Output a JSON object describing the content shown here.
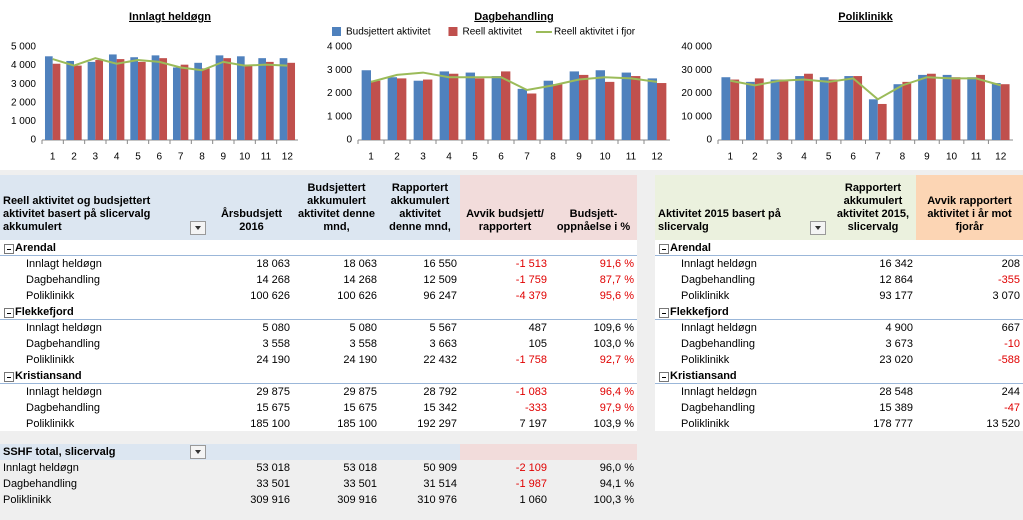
{
  "chart_data": [
    {
      "type": "bar",
      "title": "Innlagt heldøgn",
      "categories": [
        "1",
        "2",
        "3",
        "4",
        "5",
        "6",
        "7",
        "8",
        "9",
        "10",
        "11",
        "12"
      ],
      "ylim": [
        0,
        5000
      ],
      "yticks": [
        0,
        {
          "value": 1000,
          "label": "1 000"
        },
        {
          "value": 2000,
          "label": "2 000"
        },
        {
          "value": 3000,
          "label": "3 000"
        },
        {
          "value": 4000,
          "label": "4 000"
        },
        {
          "value": 5000,
          "label": "5 000"
        }
      ],
      "grid": false,
      "series": [
        {
          "type": "bar",
          "color": "#4f81bd",
          "values": [
            4500,
            4250,
            4200,
            4600,
            4450,
            4550,
            3900,
            4150,
            4550,
            4500,
            4400,
            4400
          ]
        },
        {
          "type": "bar",
          "color": "#c0504d",
          "values": [
            4100,
            4000,
            4300,
            4350,
            4200,
            4400,
            4050,
            3850,
            4400,
            4050,
            4200,
            4150
          ]
        },
        {
          "type": "line",
          "color": "#9bbb59",
          "values": [
            4350,
            4000,
            4400,
            4100,
            4300,
            4200,
            3900,
            3750,
            4200,
            4000,
            4050,
            4000
          ]
        }
      ]
    },
    {
      "type": "bar",
      "title": "Dagbehandling",
      "categories": [
        "1",
        "2",
        "3",
        "4",
        "5",
        "6",
        "7",
        "8",
        "9",
        "10",
        "11",
        "12"
      ],
      "ylim": [
        0,
        4000
      ],
      "yticks": [
        0,
        {
          "value": 1000,
          "label": "1 000"
        },
        {
          "value": 2000,
          "label": "2 000"
        },
        {
          "value": 3000,
          "label": "3 000"
        },
        {
          "value": 4000,
          "label": "4 000"
        }
      ],
      "grid": false,
      "legend": "top",
      "series": [
        {
          "name": "Budsjettert aktivitet",
          "type": "bar",
          "color": "#4f81bd",
          "values": [
            3000,
            2700,
            2550,
            2950,
            2900,
            2750,
            2200,
            2550,
            2950,
            3000,
            2900,
            2650
          ]
        },
        {
          "name": "Reell aktivitet",
          "type": "bar",
          "color": "#c0504d",
          "values": [
            2550,
            2650,
            2600,
            2850,
            2650,
            2950,
            2000,
            2400,
            2800,
            2500,
            2750,
            2450
          ]
        },
        {
          "name": "Reell aktivitet i fjor",
          "type": "line",
          "color": "#9bbb59",
          "values": [
            2500,
            2800,
            2900,
            2700,
            2700,
            2700,
            2150,
            2350,
            2600,
            2700,
            2650,
            2500
          ]
        }
      ]
    },
    {
      "type": "bar",
      "title": "Poliklinikk",
      "categories": [
        "1",
        "2",
        "3",
        "4",
        "5",
        "6",
        "7",
        "8",
        "9",
        "10",
        "11",
        "12"
      ],
      "ylim": [
        0,
        40000
      ],
      "yticks": [
        0,
        {
          "value": 10000,
          "label": "10 000"
        },
        {
          "value": 20000,
          "label": "20 000"
        },
        {
          "value": 30000,
          "label": "30 000"
        },
        {
          "value": 40000,
          "label": "40 000"
        }
      ],
      "grid": false,
      "series": [
        {
          "type": "bar",
          "color": "#4f81bd",
          "values": [
            27000,
            25000,
            26000,
            27500,
            27000,
            27500,
            17500,
            24000,
            28000,
            28000,
            27000,
            24500
          ]
        },
        {
          "type": "bar",
          "color": "#c0504d",
          "values": [
            26000,
            26500,
            26000,
            28500,
            26000,
            27500,
            15500,
            25000,
            28500,
            27000,
            28000,
            24000
          ]
        },
        {
          "type": "line",
          "color": "#9bbb59",
          "values": [
            25500,
            23500,
            25500,
            26000,
            25000,
            26500,
            17500,
            23500,
            27000,
            26500,
            26500,
            23500
          ]
        }
      ]
    }
  ],
  "left_table": {
    "title": "Reell aktivitet og budsjettert aktivitet basert på slicervalg akkumulert",
    "columns": [
      "Årsbudsjett 2016",
      "Budsjettert akkumulert aktivitet denne mnd,",
      "Rapportert akkumulert aktivitet denne mnd,",
      "Avvik budsjett/ rapportert",
      "Budsjett-oppnåelse i %"
    ],
    "groups": [
      {
        "name": "Arendal",
        "rows": [
          [
            "Innlagt heldøgn",
            "18 063",
            "18 063",
            "16 550",
            "-1 513",
            "91,6 %"
          ],
          [
            "Dagbehandling",
            "14 268",
            "14 268",
            "12 509",
            "-1 759",
            "87,7 %"
          ],
          [
            "Poliklinikk",
            "100 626",
            "100 626",
            "96 247",
            "-4 379",
            "95,6 %"
          ]
        ]
      },
      {
        "name": "Flekkefjord",
        "rows": [
          [
            "Innlagt heldøgn",
            "5 080",
            "5 080",
            "5 567",
            "487",
            "109,6 %"
          ],
          [
            "Dagbehandling",
            "3 558",
            "3 558",
            "3 663",
            "105",
            "103,0 %"
          ],
          [
            "Poliklinikk",
            "24 190",
            "24 190",
            "22 432",
            "-1 758",
            "92,7 %"
          ]
        ]
      },
      {
        "name": "Kristiansand",
        "rows": [
          [
            "Innlagt heldøgn",
            "29 875",
            "29 875",
            "28 792",
            "-1 083",
            "96,4 %"
          ],
          [
            "Dagbehandling",
            "15 675",
            "15 675",
            "15 342",
            "-333",
            "97,9 %"
          ],
          [
            "Poliklinikk",
            "185 100",
            "185 100",
            "192 297",
            "7 197",
            "103,9 %"
          ]
        ]
      }
    ],
    "total": {
      "title": "SSHF total, slicervalg",
      "rows": [
        [
          "Innlagt heldøgn",
          "53 018",
          "53 018",
          "50 909",
          "-2 109",
          "96,0 %"
        ],
        [
          "Dagbehandling",
          "33 501",
          "33 501",
          "31 514",
          "-1 987",
          "94,1 %"
        ],
        [
          "Poliklinikk",
          "309 916",
          "309 916",
          "310 976",
          "1 060",
          "100,3 %"
        ]
      ]
    }
  },
  "right_table": {
    "title": "Aktivitet 2015 basert på slicervalg",
    "columns": [
      "Rapportert akkumulert aktivitet 2015, slicervalg",
      "Avvik rapportert aktivitet i år mot fjorår"
    ],
    "groups": [
      {
        "name": "Arendal",
        "rows": [
          [
            "Innlagt heldøgn",
            "16 342",
            "208"
          ],
          [
            "Dagbehandling",
            "12 864",
            "-355"
          ],
          [
            "Poliklinikk",
            "93 177",
            "3 070"
          ]
        ]
      },
      {
        "name": "Flekkefjord",
        "rows": [
          [
            "Innlagt heldøgn",
            "4 900",
            "667"
          ],
          [
            "Dagbehandling",
            "3 673",
            "-10"
          ],
          [
            "Poliklinikk",
            "23 020",
            "-588"
          ]
        ]
      },
      {
        "name": "Kristiansand",
        "rows": [
          [
            "Innlagt heldøgn",
            "28 548",
            "244"
          ],
          [
            "Dagbehandling",
            "15 389",
            "-47"
          ],
          [
            "Poliklinikk",
            "178 777",
            "13 520"
          ]
        ]
      }
    ]
  }
}
